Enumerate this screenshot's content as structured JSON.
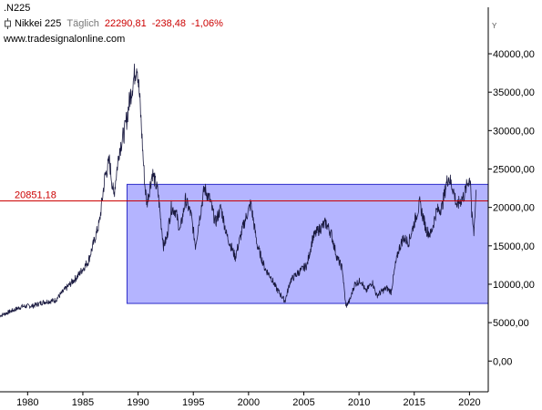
{
  "header": {
    "symbol": ".N225",
    "name": "Nikkei 225",
    "interval": "Täglich",
    "last": "22290,81",
    "change": "-238,48",
    "change_pct": "-1,06%",
    "source": "www.tradesignalonline.com",
    "icon": "candlestick-icon"
  },
  "colors": {
    "price_line": "#1a1a40",
    "box_fill": "#b4b4ff",
    "box_stroke": "#2c2cc8",
    "ref_line": "#cc0000",
    "axis": "#000000",
    "negative": "#cc0000"
  },
  "chart_data": {
    "type": "line",
    "title": "",
    "xlabel": "",
    "ylabel": "",
    "y_axis_marker": "Y",
    "y_axis_position": "right",
    "grid": false,
    "xlim": [
      1977.5,
      2021.7
    ],
    "ylim": [
      -4000,
      47000
    ],
    "x_ticks": [
      1980,
      1985,
      1990,
      1995,
      2000,
      2005,
      2010,
      2015,
      2020
    ],
    "x_tick_labels": [
      "1980",
      "1985",
      "1990",
      "1995",
      "2000",
      "2005",
      "2010",
      "2015",
      "2020"
    ],
    "y_ticks": [
      0,
      5000,
      10000,
      15000,
      20000,
      25000,
      30000,
      35000,
      40000
    ],
    "y_tick_labels": [
      "0,00",
      "5000,00",
      "10000,00",
      "15000,00",
      "20000,00",
      "25000,00",
      "30000,00",
      "35000,00",
      "40000,00"
    ],
    "series": [
      {
        "x": [
          1977.5,
          1978.5,
          1979.5,
          1980.5,
          1981.5,
          1982.5,
          1983.5,
          1984.5,
          1985.5,
          1986.0,
          1986.5,
          1987.0,
          1987.4,
          1987.8,
          1988.3,
          1988.8,
          1989.3,
          1989.9,
          1990.2,
          1990.6,
          1990.8,
          1991.3,
          1991.8,
          1992.3,
          1992.6,
          1993.0,
          1993.4,
          1993.8,
          1994.3,
          1994.8,
          1995.2,
          1995.5,
          1996.0,
          1996.5,
          1997.0,
          1997.5,
          1998.0,
          1998.8,
          1999.5,
          2000.2,
          2000.8,
          2001.5,
          2002.0,
          2002.5,
          2003.3,
          2003.8,
          2004.5,
          2005.3,
          2005.8,
          2006.3,
          2007.0,
          2007.5,
          2008.0,
          2008.5,
          2008.8,
          2009.2,
          2009.6,
          2010.2,
          2010.6,
          2011.2,
          2011.6,
          2012.0,
          2012.5,
          2012.9,
          2013.3,
          2013.6,
          2014.0,
          2014.5,
          2015.0,
          2015.5,
          2016.1,
          2016.5,
          2017.0,
          2017.5,
          2017.9,
          2018.1,
          2018.5,
          2018.9,
          2019.0,
          2019.5,
          2019.9,
          2020.1,
          2020.2,
          2020.4,
          2020.6
        ],
        "y": [
          5900,
          6500,
          7100,
          7200,
          7700,
          7900,
          9500,
          11000,
          13000,
          15500,
          18000,
          24000,
          26000,
          21500,
          27500,
          30000,
          34500,
          38900,
          33000,
          23000,
          20500,
          24500,
          22000,
          15000,
          16000,
          20000,
          19500,
          17000,
          21000,
          19000,
          15000,
          18000,
          22500,
          21000,
          18000,
          20000,
          16500,
          13500,
          17500,
          20500,
          15000,
          12000,
          11000,
          9500,
          7800,
          10500,
          11500,
          12500,
          16000,
          17000,
          18000,
          16500,
          13500,
          12000,
          7100,
          8000,
          10000,
          10500,
          9000,
          10300,
          8500,
          9000,
          9500,
          9000,
          12500,
          14500,
          16000,
          15500,
          18000,
          20500,
          17000,
          16500,
          19500,
          20000,
          23000,
          24000,
          22500,
          20000,
          20500,
          21500,
          23500,
          23800,
          19000,
          16600,
          22290
        ]
      }
    ],
    "annotations": [
      {
        "type": "box",
        "x0": 1989.0,
        "x1": 2021.7,
        "y0": 7500,
        "y1": 23000
      },
      {
        "type": "hline",
        "y": 20851.18,
        "label": "20851,18"
      }
    ]
  }
}
